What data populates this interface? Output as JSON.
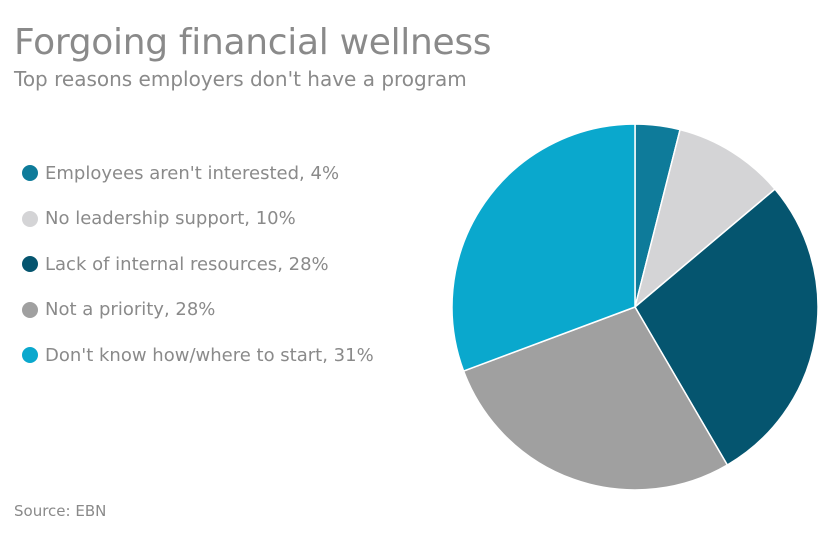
{
  "title": "Forgoing financial wellness",
  "subtitle": "Top reasons employers don't have a program",
  "source": "Source: EBN",
  "chart_data": {
    "type": "pie",
    "title": "Forgoing financial wellness",
    "subtitle": "Top reasons employers don't have a program",
    "legend_position": "left",
    "slices": [
      {
        "label": "Employees aren't interested, 4%",
        "name": "Employees aren't interested",
        "value": 4,
        "color": "#0e7b9a"
      },
      {
        "label": "No leadership support, 10%",
        "name": "No leadership support",
        "value": 10,
        "color": "#d4d4d6"
      },
      {
        "label": "Lack of internal resources, 28%",
        "name": "Lack of internal resources",
        "value": 28,
        "color": "#05556f"
      },
      {
        "label": "Not a priority, 28%",
        "name": "Not a priority",
        "value": 28,
        "color": "#a0a0a0"
      },
      {
        "label": "Don't know how/where to start, 31%",
        "name": "Don't know how/where to start",
        "value": 31,
        "color": "#0aa8cd"
      }
    ]
  }
}
